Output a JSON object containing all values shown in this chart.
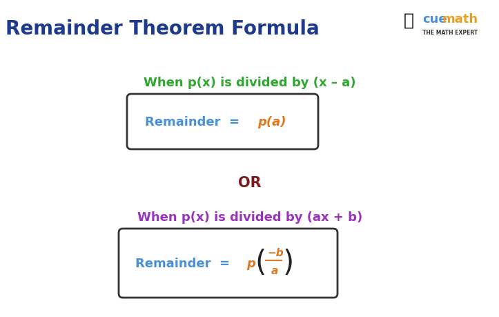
{
  "title": "Remainder Theorem Formula",
  "title_color": "#1e3a8a",
  "title_fontsize": 20,
  "background_color": "#ffffff",
  "condition1_text": "When p(x) is divided by (x – a)",
  "condition1_color": "#2da82d",
  "condition2_text": "OR",
  "condition2_color": "#7b1a1a",
  "condition3_text": "When p(x) is divided by (ax + b)",
  "condition3_color": "#9933bb",
  "box_edge_color": "#333333",
  "remainder_color": "#4a90d9",
  "pa_color": "#e07820",
  "logo_cue_color": "#4a90d9",
  "logo_math_color": "#e8a020"
}
